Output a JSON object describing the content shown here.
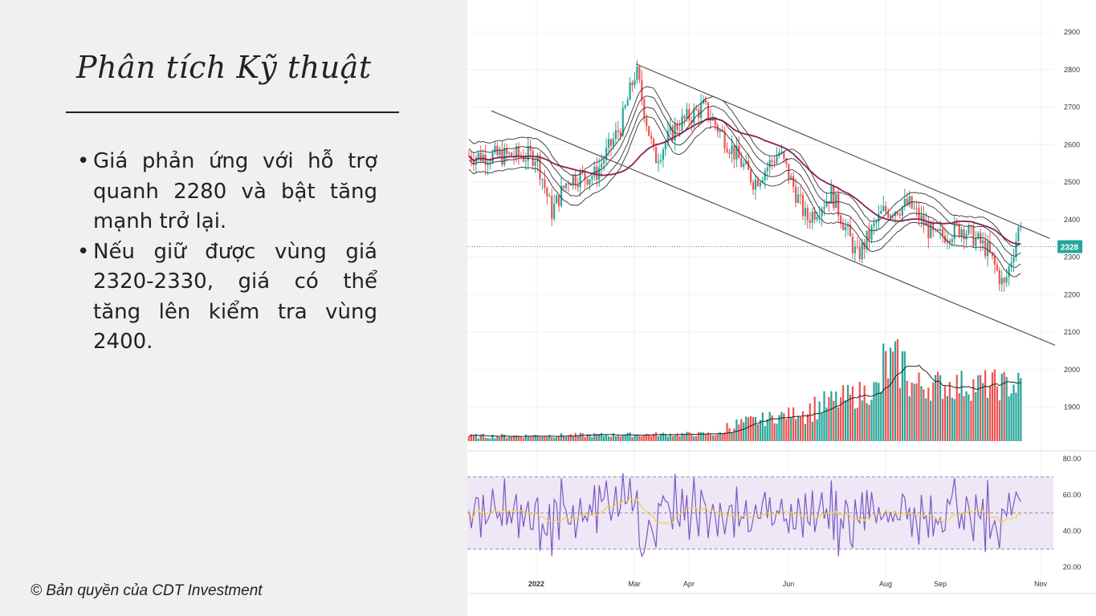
{
  "slide": {
    "title": "Phân tích Kỹ thuật",
    "bullets": [
      {
        "marker": "•",
        "text": "Giá phản ứng với hỗ trợ quanh 2280 và bật tăng mạnh trở lại."
      },
      {
        "marker": "•",
        "text": "Nếu giữ được vùng giá 2320-2330, giá có thể tăng lên kiểm tra vùng 2400."
      }
    ],
    "copyright": "© Bản quyền của CDT Investment"
  },
  "colors": {
    "up": "#26a69a",
    "down": "#ef5350",
    "ma_long": "#8e1e54",
    "bands": "#333333",
    "rsi_line": "#7e57c2",
    "rsi_ma": "#f5d142",
    "rsi_band": "#ede7f6",
    "price_label": "#26a69a"
  },
  "chart_data": [
    {
      "type": "candlestick",
      "panel": "price",
      "y_ticks": [
        "2900",
        "2800",
        "2700",
        "2600",
        "2500",
        "2400",
        "2300",
        "2200",
        "2100",
        "2000",
        "1900"
      ],
      "ylim": [
        1900,
        2900
      ],
      "last_price_label": "2328",
      "x_ticks": [
        "2022",
        "Mar",
        "Apr",
        "Jun",
        "Aug",
        "Sep",
        "Nov"
      ],
      "approx_close_path": [
        {
          "date": "2022-01-01",
          "close": 2570
        },
        {
          "date": "2022-01-10",
          "close": 2420
        },
        {
          "date": "2022-01-20",
          "close": 2510
        },
        {
          "date": "2022-02-05",
          "close": 2520
        },
        {
          "date": "2022-02-20",
          "close": 2650
        },
        {
          "date": "2022-03-01",
          "close": 2800
        },
        {
          "date": "2022-03-12",
          "close": 2560
        },
        {
          "date": "2022-03-25",
          "close": 2650
        },
        {
          "date": "2022-04-10",
          "close": 2700
        },
        {
          "date": "2022-04-25",
          "close": 2600
        },
        {
          "date": "2022-05-10",
          "close": 2500
        },
        {
          "date": "2022-05-25",
          "close": 2580
        },
        {
          "date": "2022-06-10",
          "close": 2400
        },
        {
          "date": "2022-06-25",
          "close": 2470
        },
        {
          "date": "2022-07-10",
          "close": 2300
        },
        {
          "date": "2022-07-25",
          "close": 2420
        },
        {
          "date": "2022-08-10",
          "close": 2440
        },
        {
          "date": "2022-08-25",
          "close": 2350
        },
        {
          "date": "2022-09-10",
          "close": 2380
        },
        {
          "date": "2022-09-25",
          "close": 2320
        },
        {
          "date": "2022-10-05",
          "close": 2220
        },
        {
          "date": "2022-10-15",
          "close": 2400
        },
        {
          "date": "2022-10-25",
          "close": 2328
        }
      ],
      "channel": {
        "upper": [
          {
            "date": "2022-03-01",
            "price": 2815
          },
          {
            "date": "2022-11-01",
            "price": 2350
          }
        ],
        "lower": [
          {
            "date": "2022-01-01",
            "price": 2680
          },
          {
            "date": "2022-11-01",
            "price": 2065
          }
        ]
      }
    },
    {
      "type": "bar",
      "panel": "volume",
      "note_shape": "volume rises from low levels to peaks around Aug and stays elevated into Oct"
    },
    {
      "type": "line",
      "panel": "rsi",
      "y_ticks": [
        "80.00",
        "60.00",
        "40.00",
        "20.00"
      ],
      "ylim": [
        20,
        80
      ],
      "band": [
        30,
        70
      ],
      "midline": 50
    }
  ]
}
